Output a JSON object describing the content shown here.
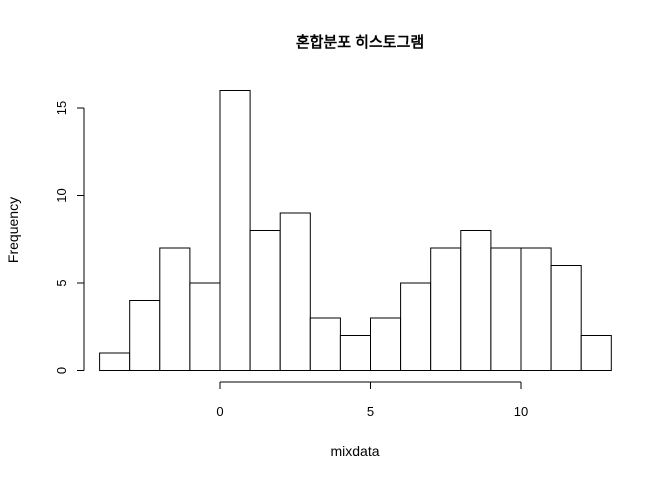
{
  "chart_data": {
    "type": "bar",
    "subtype": "histogram",
    "title": "혼합분포 히스토그램",
    "xlabel": "mixdata",
    "ylabel": "Frequency",
    "bins": [
      {
        "x0": -4,
        "x1": -3,
        "count": 1
      },
      {
        "x0": -3,
        "x1": -2,
        "count": 4
      },
      {
        "x0": -2,
        "x1": -1,
        "count": 7
      },
      {
        "x0": -1,
        "x1": 0,
        "count": 5
      },
      {
        "x0": 0,
        "x1": 1,
        "count": 16
      },
      {
        "x0": 1,
        "x1": 2,
        "count": 8
      },
      {
        "x0": 2,
        "x1": 3,
        "count": 9
      },
      {
        "x0": 3,
        "x1": 4,
        "count": 3
      },
      {
        "x0": 4,
        "x1": 5,
        "count": 2
      },
      {
        "x0": 5,
        "x1": 6,
        "count": 3
      },
      {
        "x0": 6,
        "x1": 7,
        "count": 5
      },
      {
        "x0": 7,
        "x1": 8,
        "count": 7
      },
      {
        "x0": 8,
        "x1": 9,
        "count": 8
      },
      {
        "x0": 9,
        "x1": 10,
        "count": 7
      },
      {
        "x0": 10,
        "x1": 11,
        "count": 7
      },
      {
        "x0": 11,
        "x1": 12,
        "count": 6
      },
      {
        "x0": 12,
        "x1": 13,
        "count": 2
      }
    ],
    "xticks": [
      0,
      5,
      10
    ],
    "xtick_labels": [
      "0",
      "5",
      "10"
    ],
    "yticks": [
      0,
      5,
      10,
      15
    ],
    "ytick_labels": [
      "0",
      "5",
      "10",
      "15"
    ],
    "xlim": [
      -4,
      13
    ],
    "ylim": [
      0,
      16
    ],
    "grid": false,
    "bar_fill": "#ffffff",
    "bar_stroke": "#000000"
  }
}
